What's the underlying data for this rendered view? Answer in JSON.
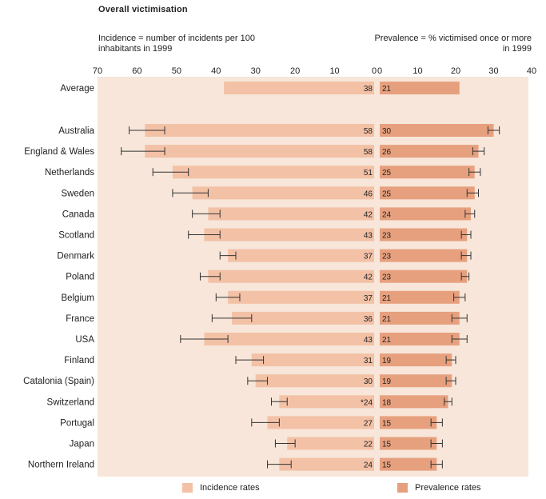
{
  "chart_data": {
    "type": "bar",
    "title": "Overall victimisation",
    "left_axis_label": "Incidence = number of incidents per 100 inhabitants in 1999",
    "right_axis_label": "Prevalence = % victimised once or more in 1999",
    "left_ticks": [
      "70",
      "60",
      "50",
      "40",
      "30",
      "20",
      "10",
      "0"
    ],
    "right_ticks": [
      "0",
      "10",
      "20",
      "30",
      "40"
    ],
    "xlim_incidence": [
      0,
      70
    ],
    "xlim_prevalence": [
      0,
      40
    ],
    "categories": [
      "Average",
      "Australia",
      "England & Wales",
      "Netherlands",
      "Sweden",
      "Canada",
      "Scotland",
      "Denmark",
      "Poland",
      "Belgium",
      "France",
      "USA",
      "Finland",
      "Catalonia (Spain)",
      "Switzerland",
      "Portugal",
      "Japan",
      "Northern Ireland"
    ],
    "series": [
      {
        "name": "Incidence rates",
        "color": "#f3c1a6",
        "values": [
          38,
          58,
          58,
          51,
          46,
          42,
          43,
          37,
          42,
          37,
          36,
          43,
          31,
          30,
          24,
          27,
          22,
          24
        ],
        "value_labels": [
          "38",
          "58",
          "58",
          "51",
          "46",
          "42",
          "43",
          "37",
          "42",
          "37",
          "36",
          "43",
          "31",
          "30",
          "*24",
          "27",
          "22",
          "24"
        ],
        "error_low": [
          null,
          53,
          53,
          47,
          42,
          39,
          39,
          35,
          39,
          34,
          31,
          37,
          28,
          27,
          22,
          24,
          20,
          21
        ],
        "error_high": [
          null,
          62,
          64,
          56,
          51,
          46,
          47,
          39,
          44,
          40,
          41,
          49,
          35,
          32,
          26,
          31,
          25,
          27
        ]
      },
      {
        "name": "Prevalence rates",
        "color": "#e7a07e",
        "values": [
          21,
          30,
          26,
          25,
          25,
          24,
          23,
          23,
          23,
          21,
          21,
          21,
          19,
          19,
          18,
          15,
          15,
          15
        ],
        "value_labels": [
          "21",
          "30",
          "26",
          "25",
          "25",
          "24",
          "23",
          "23",
          "23",
          "21",
          "21",
          "21",
          "19",
          "19",
          "18",
          "15",
          "15",
          "15"
        ],
        "error_low": [
          null,
          28.5,
          24.5,
          23.5,
          23,
          22.5,
          21.5,
          21.5,
          21.5,
          19.5,
          19,
          19,
          17.5,
          17.5,
          17,
          13.5,
          13.5,
          13.5
        ],
        "error_high": [
          null,
          31.5,
          27.5,
          26.5,
          26,
          25,
          24,
          24,
          23.5,
          22.5,
          23,
          23,
          20,
          20,
          19,
          16.5,
          16.5,
          16.5
        ]
      }
    ],
    "legend_position": "bottom",
    "grid": false
  },
  "legend": {
    "incidence_label": "Incidence rates",
    "prevalence_label": "Prevalence rates"
  }
}
